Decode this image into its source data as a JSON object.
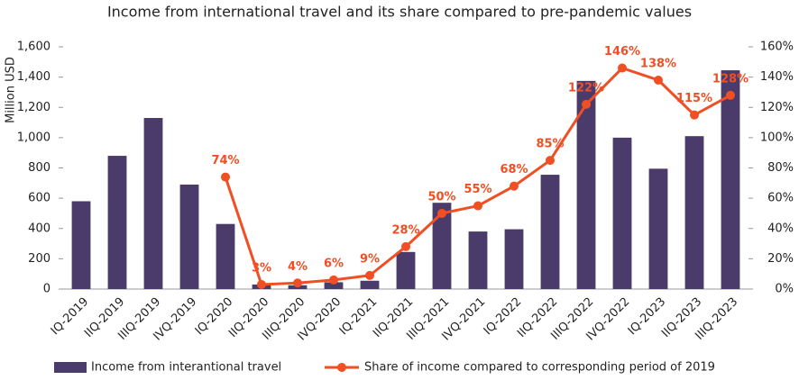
{
  "chart_data": {
    "type": "bar",
    "title": "Income from international travel and its share compared to pre-pandemic values",
    "y_label": "Million USD",
    "categories": [
      "IQ-2019",
      "IIQ-2019",
      "IIIQ-2019",
      "IVQ-2019",
      "IQ-2020",
      "IIQ-2020",
      "IIIQ-2020",
      "IVQ-2020",
      "IQ-2021",
      "IIQ-2021",
      "IIIQ-2021",
      "IVQ-2021",
      "IQ-2022",
      "IIQ-2022",
      "IIIQ-2022",
      "IVQ-2022",
      "IQ-2023",
      "IIQ-2023",
      "IIIQ-2023"
    ],
    "series": [
      {
        "name": "Income from interantional travel",
        "type": "bar",
        "color": "#4a3b6b",
        "values": [
          580,
          880,
          1130,
          690,
          430,
          30,
          25,
          45,
          55,
          245,
          570,
          380,
          395,
          755,
          1375,
          1000,
          795,
          1010,
          1445
        ]
      },
      {
        "name": "Share of income compared to corresponding period of 2019",
        "type": "line",
        "axis": "y2",
        "color": "#f04e23",
        "values": [
          null,
          null,
          null,
          null,
          74,
          3,
          4,
          6,
          9,
          28,
          50,
          55,
          68,
          85,
          122,
          146,
          138,
          115,
          128
        ],
        "value_labels": [
          null,
          null,
          null,
          null,
          "74%",
          "3%",
          "4%",
          "6%",
          "9%",
          "28%",
          "50%",
          "55%",
          "68%",
          "85%",
          "122%",
          "146%",
          "138%",
          "115%",
          "128%"
        ]
      }
    ],
    "ylim": [
      0,
      1600
    ],
    "yticks": [
      0,
      200,
      400,
      600,
      800,
      {
        "value": 1000,
        "label": "1,000"
      },
      {
        "value": 1200,
        "label": "1,200"
      },
      {
        "value": 1400,
        "label": "1,400"
      },
      {
        "value": 1600,
        "label": "1,600"
      }
    ],
    "y2lim": [
      0,
      160
    ],
    "y2ticks": [
      {
        "value": 0,
        "label": "0%"
      },
      {
        "value": 20,
        "label": "20%"
      },
      {
        "value": 40,
        "label": "40%"
      },
      {
        "value": 60,
        "label": "60%"
      },
      {
        "value": 80,
        "label": "80%"
      },
      {
        "value": 100,
        "label": "100%"
      },
      {
        "value": 120,
        "label": "120%"
      },
      {
        "value": 140,
        "label": "140%"
      },
      {
        "value": 160,
        "label": "160%"
      }
    ],
    "legend": "bottom"
  }
}
